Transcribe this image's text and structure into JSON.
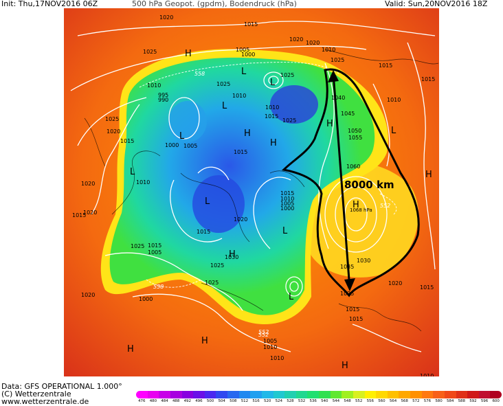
{
  "header": {
    "init": "Init: Thu,17NOV2016 06Z",
    "title": "500 hPa Geopot. (gpdm), Bodendruck (hPa)",
    "valid": "Valid: Sun,20NOV2016 18Z"
  },
  "footer": {
    "data": "Data: GFS OPERATIONAL 1.000°",
    "copyright": "(C) Wetterzentrale",
    "url": "www.wetterzentrale.de"
  },
  "annotation": {
    "distance": "8000 km",
    "high_value": "1068 hPa"
  },
  "high_labels": [
    "H",
    "H",
    "H",
    "H",
    "H",
    "H",
    "H",
    "H",
    "H",
    "H"
  ],
  "low_labels": [
    "L",
    "L",
    "L",
    "L",
    "L",
    "L",
    "L",
    "L",
    "L"
  ],
  "isobar_labels": [
    "1020",
    "1025",
    "1015",
    "1005",
    "1000",
    "1020",
    "1025",
    "1015",
    "1010",
    "1025",
    "995",
    "990",
    "1010",
    "1020",
    "1025",
    "1020",
    "1015",
    "1000",
    "1005",
    "1015",
    "1010",
    "1015",
    "1025",
    "1040",
    "1045",
    "1050",
    "1055",
    "1060",
    "1010",
    "1020",
    "1015",
    "1010",
    "1005",
    "1000",
    "1025",
    "1015",
    "1005",
    "1030",
    "1025",
    "1025",
    "1035",
    "1030",
    "1020",
    "1015",
    "1015",
    "1025",
    "1015",
    "1010",
    "1010",
    "1005",
    "1010",
    "1020",
    "1000",
    "1010",
    "1020",
    "1015",
    "1015",
    "1010",
    "1015",
    "1020",
    "1025"
  ],
  "geopot_labels": [
    "558",
    "552",
    "558",
    "552",
    "552"
  ],
  "colorbar": {
    "ticks": [
      "476",
      "480",
      "484",
      "488",
      "492",
      "496",
      "500",
      "504",
      "508",
      "512",
      "516",
      "520",
      "524",
      "528",
      "532",
      "536",
      "540",
      "544",
      "548",
      "552",
      "556",
      "560",
      "564",
      "568",
      "572",
      "576",
      "580",
      "584",
      "588",
      "592",
      "596",
      "600"
    ],
    "colors": [
      "#ff00ff",
      "#e800f0",
      "#c800e8",
      "#a800e0",
      "#8800e0",
      "#6a10e8",
      "#4a28f0",
      "#3048f0",
      "#2868f0",
      "#2088f0",
      "#20a0f0",
      "#20b8e8",
      "#20c8d0",
      "#20d0b0",
      "#20d890",
      "#20e070",
      "#30e050",
      "#60e830",
      "#a0f020",
      "#d8f020",
      "#fff000",
      "#ffd800",
      "#ffc000",
      "#ffa800",
      "#ff9000",
      "#ff7810",
      "#f86018",
      "#f04818",
      "#e03018",
      "#d01818",
      "#c01030",
      "#b00020"
    ]
  },
  "legend": {
    "unit": "gpdm"
  }
}
